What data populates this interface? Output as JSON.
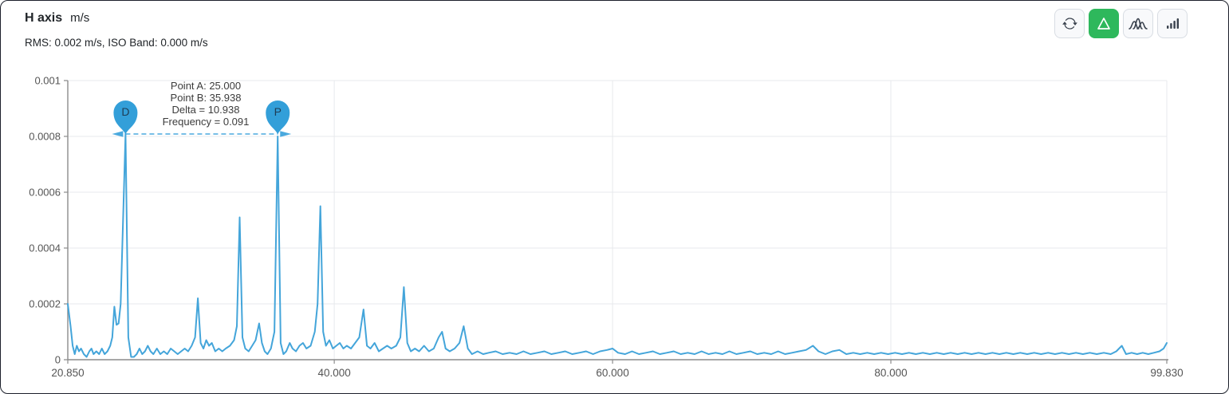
{
  "header": {
    "title": "H axis",
    "unit": "m/s",
    "subtitle": "RMS: 0.002 m/s, ISO Band: 0.000 m/s"
  },
  "toolbar": {
    "buttons": [
      {
        "icon": "refresh-icon",
        "active": false
      },
      {
        "icon": "delta-triangle-icon",
        "active": true
      },
      {
        "icon": "peaks-overlay-icon",
        "active": false
      },
      {
        "icon": "bars-icon",
        "active": false
      }
    ]
  },
  "annotation": {
    "lines": [
      "Point A: 25.000",
      "Point B: 35.938",
      "Delta = 10.938",
      "Frequency = 0.091"
    ]
  },
  "colors": {
    "series_blue": "#44a5da",
    "marker_blue": "#339fd9",
    "arrow_blue": "#4aa9de",
    "active_green": "#2eb85c",
    "grid": "#e7e9ec",
    "axis": "#8c8c8c",
    "tick_text": "#555555",
    "marker_letter": "#1e3d55"
  },
  "chart_data": {
    "type": "line",
    "title": "H axis m/s",
    "xlabel": "",
    "ylabel": "",
    "xlim": [
      20.85,
      99.83
    ],
    "ylim": [
      0,
      0.001
    ],
    "grid": true,
    "x_ticks": [
      {
        "value": 20.85,
        "label": "20.850"
      },
      {
        "value": 40.0,
        "label": "40.000"
      },
      {
        "value": 60.0,
        "label": "60.000"
      },
      {
        "value": 80.0,
        "label": "80.000"
      },
      {
        "value": 99.83,
        "label": "99.830"
      }
    ],
    "y_ticks": [
      {
        "value": 0,
        "label": "0"
      },
      {
        "value": 0.0002,
        "label": "0.0002"
      },
      {
        "value": 0.0004,
        "label": "0.0004"
      },
      {
        "value": 0.0006,
        "label": "0.0006"
      },
      {
        "value": 0.0008,
        "label": "0.0008"
      },
      {
        "value": 0.001,
        "label": "0.001"
      }
    ],
    "markers": [
      {
        "label": "D",
        "x": 25.0,
        "y": 0.0008
      },
      {
        "label": "P",
        "x": 35.938,
        "y": 0.0008
      }
    ],
    "delta_line": {
      "x1": 25.0,
      "x2": 35.938,
      "y": 0.0008
    },
    "series": [
      {
        "name": "H axis spectrum",
        "points": [
          [
            20.85,
            0.0002
          ],
          [
            21.05,
            0.00012
          ],
          [
            21.2,
            5e-05
          ],
          [
            21.35,
            2e-05
          ],
          [
            21.5,
            5e-05
          ],
          [
            21.65,
            3e-05
          ],
          [
            21.8,
            4e-05
          ],
          [
            22.0,
            2e-05
          ],
          [
            22.2,
            1e-05
          ],
          [
            22.4,
            3e-05
          ],
          [
            22.55,
            4e-05
          ],
          [
            22.7,
            2e-05
          ],
          [
            22.9,
            3e-05
          ],
          [
            23.1,
            2e-05
          ],
          [
            23.3,
            4e-05
          ],
          [
            23.5,
            2e-05
          ],
          [
            23.7,
            3e-05
          ],
          [
            23.9,
            5e-05
          ],
          [
            24.05,
            8e-05
          ],
          [
            24.2,
            0.00019
          ],
          [
            24.35,
            0.000125
          ],
          [
            24.5,
            0.00013
          ],
          [
            24.65,
            0.0002
          ],
          [
            25.0,
            0.00081
          ],
          [
            25.2,
            8e-05
          ],
          [
            25.4,
            1e-05
          ],
          [
            25.6,
            1e-05
          ],
          [
            25.8,
            2e-05
          ],
          [
            26.0,
            4e-05
          ],
          [
            26.2,
            2e-05
          ],
          [
            26.4,
            3e-05
          ],
          [
            26.6,
            5e-05
          ],
          [
            26.8,
            3e-05
          ],
          [
            27.0,
            2e-05
          ],
          [
            27.25,
            4e-05
          ],
          [
            27.5,
            2e-05
          ],
          [
            27.75,
            3e-05
          ],
          [
            28.0,
            2e-05
          ],
          [
            28.25,
            4e-05
          ],
          [
            28.5,
            3e-05
          ],
          [
            28.75,
            2e-05
          ],
          [
            29.0,
            3e-05
          ],
          [
            29.25,
            4e-05
          ],
          [
            29.5,
            3e-05
          ],
          [
            29.75,
            5e-05
          ],
          [
            30.0,
            8e-05
          ],
          [
            30.2,
            0.00022
          ],
          [
            30.4,
            6e-05
          ],
          [
            30.6,
            4e-05
          ],
          [
            30.8,
            7e-05
          ],
          [
            31.0,
            5e-05
          ],
          [
            31.2,
            6e-05
          ],
          [
            31.45,
            3e-05
          ],
          [
            31.7,
            4e-05
          ],
          [
            31.95,
            3e-05
          ],
          [
            32.2,
            4e-05
          ],
          [
            32.5,
            5e-05
          ],
          [
            32.8,
            7e-05
          ],
          [
            33.0,
            0.00012
          ],
          [
            33.2,
            0.00051
          ],
          [
            33.4,
            8e-05
          ],
          [
            33.6,
            4e-05
          ],
          [
            33.85,
            3e-05
          ],
          [
            34.1,
            5e-05
          ],
          [
            34.35,
            7e-05
          ],
          [
            34.6,
            0.00013
          ],
          [
            34.8,
            6e-05
          ],
          [
            35.0,
            3e-05
          ],
          [
            35.2,
            2e-05
          ],
          [
            35.45,
            4e-05
          ],
          [
            35.7,
            0.0001
          ],
          [
            35.938,
            0.0008
          ],
          [
            36.15,
            6e-05
          ],
          [
            36.35,
            2e-05
          ],
          [
            36.55,
            3e-05
          ],
          [
            36.8,
            6e-05
          ],
          [
            37.0,
            4e-05
          ],
          [
            37.25,
            3e-05
          ],
          [
            37.5,
            5e-05
          ],
          [
            37.75,
            6e-05
          ],
          [
            38.0,
            4e-05
          ],
          [
            38.3,
            5e-05
          ],
          [
            38.6,
            0.0001
          ],
          [
            38.8,
            0.0002
          ],
          [
            39.0,
            0.00055
          ],
          [
            39.2,
            0.0001
          ],
          [
            39.4,
            5e-05
          ],
          [
            39.65,
            7e-05
          ],
          [
            39.9,
            4e-05
          ],
          [
            40.15,
            5e-05
          ],
          [
            40.4,
            6e-05
          ],
          [
            40.65,
            4e-05
          ],
          [
            40.9,
            5e-05
          ],
          [
            41.2,
            4e-05
          ],
          [
            41.5,
            6e-05
          ],
          [
            41.8,
            8e-05
          ],
          [
            42.1,
            0.00018
          ],
          [
            42.35,
            5e-05
          ],
          [
            42.6,
            4e-05
          ],
          [
            42.9,
            6e-05
          ],
          [
            43.2,
            3e-05
          ],
          [
            43.5,
            4e-05
          ],
          [
            43.8,
            5e-05
          ],
          [
            44.1,
            4e-05
          ],
          [
            44.45,
            5e-05
          ],
          [
            44.75,
            8e-05
          ],
          [
            45.0,
            0.00026
          ],
          [
            45.25,
            6e-05
          ],
          [
            45.5,
            3e-05
          ],
          [
            45.8,
            4e-05
          ],
          [
            46.1,
            3e-05
          ],
          [
            46.45,
            5e-05
          ],
          [
            46.8,
            3e-05
          ],
          [
            47.15,
            4e-05
          ],
          [
            47.5,
            8e-05
          ],
          [
            47.75,
            0.0001
          ],
          [
            48.0,
            4e-05
          ],
          [
            48.3,
            3e-05
          ],
          [
            48.65,
            4e-05
          ],
          [
            49.0,
            6e-05
          ],
          [
            49.3,
            0.00012
          ],
          [
            49.6,
            4e-05
          ],
          [
            49.9,
            2e-05
          ],
          [
            50.3,
            3e-05
          ],
          [
            50.7,
            2e-05
          ],
          [
            51.1,
            2.5e-05
          ],
          [
            51.6,
            3e-05
          ],
          [
            52.1,
            2e-05
          ],
          [
            52.6,
            2.5e-05
          ],
          [
            53.1,
            2e-05
          ],
          [
            53.6,
            3e-05
          ],
          [
            54.1,
            2e-05
          ],
          [
            54.6,
            2.5e-05
          ],
          [
            55.1,
            3e-05
          ],
          [
            55.6,
            2e-05
          ],
          [
            56.1,
            2.5e-05
          ],
          [
            56.6,
            3e-05
          ],
          [
            57.1,
            2e-05
          ],
          [
            57.6,
            2.5e-05
          ],
          [
            58.1,
            3e-05
          ],
          [
            58.6,
            2e-05
          ],
          [
            59.1,
            3e-05
          ],
          [
            59.6,
            3.5e-05
          ],
          [
            60.0,
            4e-05
          ],
          [
            60.4,
            2.5e-05
          ],
          [
            60.9,
            2e-05
          ],
          [
            61.4,
            3e-05
          ],
          [
            61.9,
            2e-05
          ],
          [
            62.4,
            2.5e-05
          ],
          [
            62.9,
            3e-05
          ],
          [
            63.4,
            2e-05
          ],
          [
            63.9,
            2.5e-05
          ],
          [
            64.4,
            3e-05
          ],
          [
            64.9,
            2e-05
          ],
          [
            65.4,
            2.5e-05
          ],
          [
            65.9,
            2e-05
          ],
          [
            66.4,
            3e-05
          ],
          [
            66.9,
            2e-05
          ],
          [
            67.4,
            2.5e-05
          ],
          [
            67.9,
            2e-05
          ],
          [
            68.4,
            3e-05
          ],
          [
            68.9,
            2e-05
          ],
          [
            69.4,
            2.5e-05
          ],
          [
            69.9,
            3e-05
          ],
          [
            70.4,
            2e-05
          ],
          [
            70.9,
            2.5e-05
          ],
          [
            71.4,
            2e-05
          ],
          [
            71.9,
            3e-05
          ],
          [
            72.4,
            2e-05
          ],
          [
            72.9,
            2.5e-05
          ],
          [
            73.4,
            3e-05
          ],
          [
            73.9,
            3.5e-05
          ],
          [
            74.4,
            5e-05
          ],
          [
            74.8,
            3e-05
          ],
          [
            75.3,
            2e-05
          ],
          [
            75.8,
            3e-05
          ],
          [
            76.3,
            3.5e-05
          ],
          [
            76.8,
            2e-05
          ],
          [
            77.3,
            2.5e-05
          ],
          [
            77.8,
            2e-05
          ],
          [
            78.3,
            2.5e-05
          ],
          [
            78.8,
            2e-05
          ],
          [
            79.3,
            2.5e-05
          ],
          [
            79.8,
            2e-05
          ],
          [
            80.3,
            2.5e-05
          ],
          [
            80.8,
            2e-05
          ],
          [
            81.3,
            2.5e-05
          ],
          [
            81.8,
            2e-05
          ],
          [
            82.3,
            2.5e-05
          ],
          [
            82.8,
            2e-05
          ],
          [
            83.3,
            2.5e-05
          ],
          [
            83.8,
            2e-05
          ],
          [
            84.3,
            2.5e-05
          ],
          [
            84.8,
            2e-05
          ],
          [
            85.3,
            2.5e-05
          ],
          [
            85.8,
            2e-05
          ],
          [
            86.3,
            2.5e-05
          ],
          [
            86.8,
            2e-05
          ],
          [
            87.3,
            2.5e-05
          ],
          [
            87.8,
            2e-05
          ],
          [
            88.3,
            2.5e-05
          ],
          [
            88.8,
            2e-05
          ],
          [
            89.3,
            2.5e-05
          ],
          [
            89.8,
            2e-05
          ],
          [
            90.3,
            2.5e-05
          ],
          [
            90.8,
            2e-05
          ],
          [
            91.3,
            2.5e-05
          ],
          [
            91.8,
            2e-05
          ],
          [
            92.3,
            2.5e-05
          ],
          [
            92.8,
            2e-05
          ],
          [
            93.3,
            2.5e-05
          ],
          [
            93.8,
            2e-05
          ],
          [
            94.3,
            2.5e-05
          ],
          [
            94.8,
            2e-05
          ],
          [
            95.3,
            2.5e-05
          ],
          [
            95.8,
            2e-05
          ],
          [
            96.2,
            3e-05
          ],
          [
            96.6,
            5e-05
          ],
          [
            96.9,
            2e-05
          ],
          [
            97.3,
            2.5e-05
          ],
          [
            97.7,
            2e-05
          ],
          [
            98.1,
            2.5e-05
          ],
          [
            98.5,
            2e-05
          ],
          [
            98.9,
            2.5e-05
          ],
          [
            99.3,
            3e-05
          ],
          [
            99.6,
            4e-05
          ],
          [
            99.83,
            6e-05
          ]
        ]
      }
    ]
  }
}
